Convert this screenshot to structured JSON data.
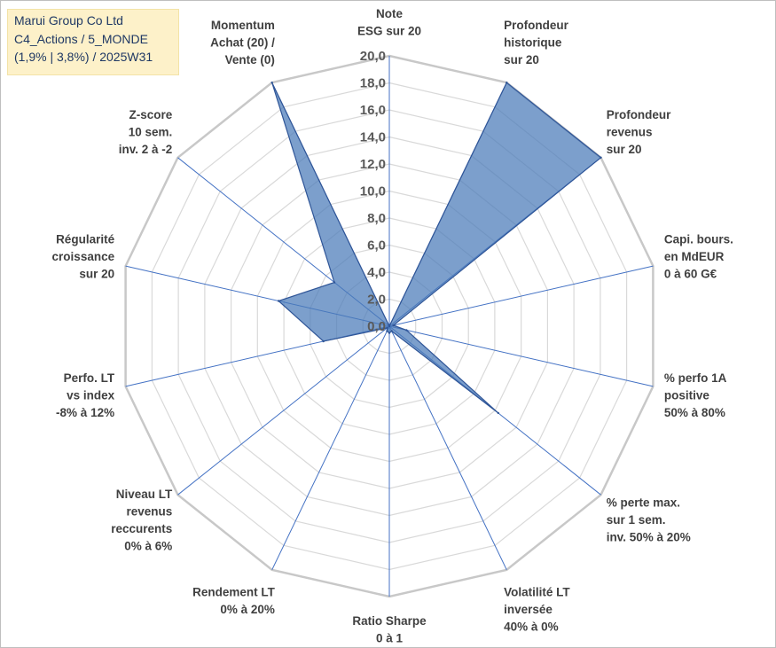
{
  "title_box": {
    "line1": "Marui Group Co Ltd",
    "line2": "C4_Actions / 5_MONDE",
    "line3": "(1,9% | 3,8%) / 2025W31",
    "background_color": "#fdf1c9",
    "text_color": "#1f3864"
  },
  "chart_data": {
    "type": "radar",
    "rmin": 0,
    "rmax": 20,
    "tick_step": 2,
    "tick_labels": [
      "0,0",
      "2,0",
      "4,0",
      "6,0",
      "8,0",
      "10,0",
      "12,0",
      "14,0",
      "16,0",
      "18,0",
      "20,0"
    ],
    "grid": true,
    "legend": "none",
    "series_color": "#4a7ab8",
    "categories": [
      [
        "Note",
        "ESG sur 20"
      ],
      [
        "Profondeur",
        "historique",
        "sur 20"
      ],
      [
        "Profondeur",
        "revenus",
        "sur 20"
      ],
      [
        "Capi. bours.",
        "en MdEUR",
        "0 à 60 G€"
      ],
      [
        "% perfo 1A",
        "positive",
        "50% à 80%"
      ],
      [
        "% perte max.",
        "sur 1 sem.",
        "inv. 50% à 20%"
      ],
      [
        "Volatilité LT",
        "inversée",
        "40% à 0%"
      ],
      [
        "Ratio Sharpe",
        "0 à 1"
      ],
      [
        "Rendement LT",
        "0% à 20%"
      ],
      [
        "Niveau LT",
        "revenus",
        "reccurents",
        "0% à 6%"
      ],
      [
        "Perfo. LT",
        "vs index",
        "-8% à 12%"
      ],
      [
        "Régularité",
        "croissance",
        "sur 20"
      ],
      [
        "Z-score",
        "10 sem.",
        "inv. 2 à -2"
      ],
      [
        "Momentum",
        "Achat (20) /",
        "Vente (0)"
      ]
    ],
    "series": [
      {
        "values": [
          0,
          20,
          20,
          0.3,
          1.3,
          10.3,
          0.4,
          0.5,
          0.4,
          0.2,
          5,
          8.4,
          5.2,
          20
        ]
      }
    ]
  }
}
